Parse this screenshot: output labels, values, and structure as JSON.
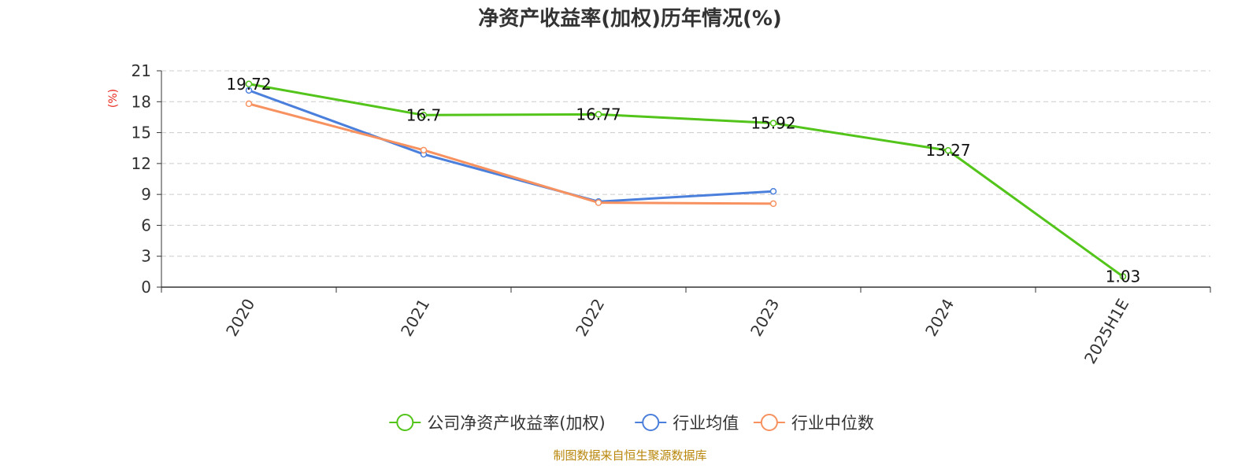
{
  "chart_data": {
    "type": "line",
    "title": "净资产收益率(加权)历年情况(%)",
    "ylabel": "(%)",
    "categories": [
      "2020",
      "2021",
      "2022",
      "2023",
      "2024",
      "2025H1E"
    ],
    "ylim": [
      0,
      21
    ],
    "yticks": [
      0,
      3,
      6,
      9,
      12,
      15,
      18,
      21
    ],
    "grid": true,
    "legend_position": "bottom",
    "series": [
      {
        "name": "公司净资产收益率(加权)",
        "color": "#52c41a",
        "values": [
          19.72,
          16.7,
          16.77,
          15.92,
          13.27,
          1.03
        ],
        "labels": [
          "19.72",
          "16.7",
          "16.77",
          "15.92",
          "13.27",
          "1.03"
        ]
      },
      {
        "name": "行业均值",
        "color": "#4a7fdc",
        "values": [
          19.1,
          12.9,
          8.3,
          9.3,
          null,
          null
        ]
      },
      {
        "name": "行业中位数",
        "color": "#f79260",
        "values": [
          17.8,
          13.3,
          8.2,
          8.1,
          null,
          null
        ]
      }
    ]
  },
  "footer": {
    "source": "制图数据来自恒生聚源数据库"
  }
}
